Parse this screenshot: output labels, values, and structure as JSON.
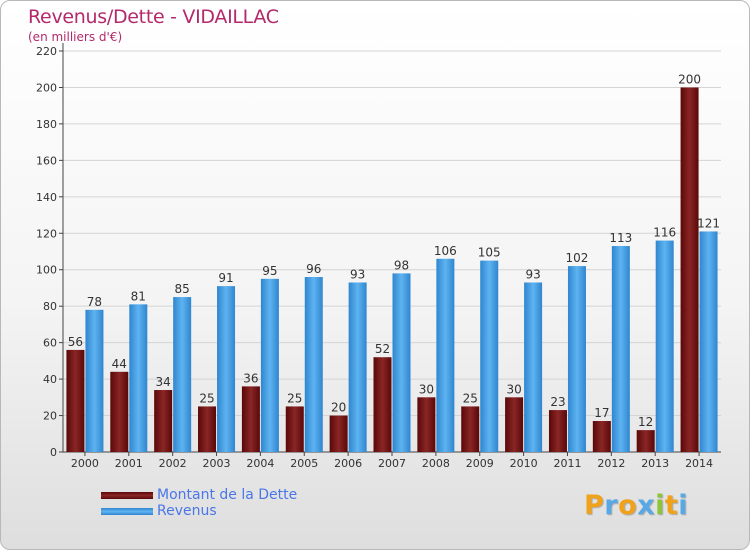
{
  "chart_data": {
    "type": "bar",
    "title": "Revenus/Dette - VIDAILLAC",
    "subtitle": "(en milliers d'€)",
    "categories": [
      "2000",
      "2001",
      "2002",
      "2003",
      "2004",
      "2005",
      "2006",
      "2007",
      "2008",
      "2009",
      "2010",
      "2011",
      "2012",
      "2013",
      "2014"
    ],
    "series": [
      {
        "name": "Montant de la Dette",
        "color": "#7a1414",
        "values": [
          56,
          44,
          34,
          25,
          36,
          25,
          20,
          52,
          30,
          25,
          30,
          23,
          17,
          12,
          200
        ]
      },
      {
        "name": "Revenus",
        "color": "#3d9ae2",
        "values": [
          78,
          81,
          85,
          91,
          95,
          96,
          93,
          98,
          106,
          105,
          93,
          102,
          113,
          116,
          121
        ]
      }
    ],
    "ylim": [
      0,
      220
    ],
    "yticks": [
      0,
      20,
      40,
      60,
      80,
      100,
      120,
      140,
      160,
      180,
      200,
      220
    ],
    "grid": true,
    "legend_position": "bottom-left",
    "xlabel": "",
    "ylabel": ""
  },
  "brand": {
    "letters": [
      "P",
      "r",
      "o",
      "x",
      "i",
      "t",
      "i"
    ],
    "colors": [
      "#f0a21b",
      "#56a8e6",
      "#f0a21b",
      "#56a8e6",
      "#8cc43c",
      "#f0a21b",
      "#56a8e6"
    ]
  }
}
